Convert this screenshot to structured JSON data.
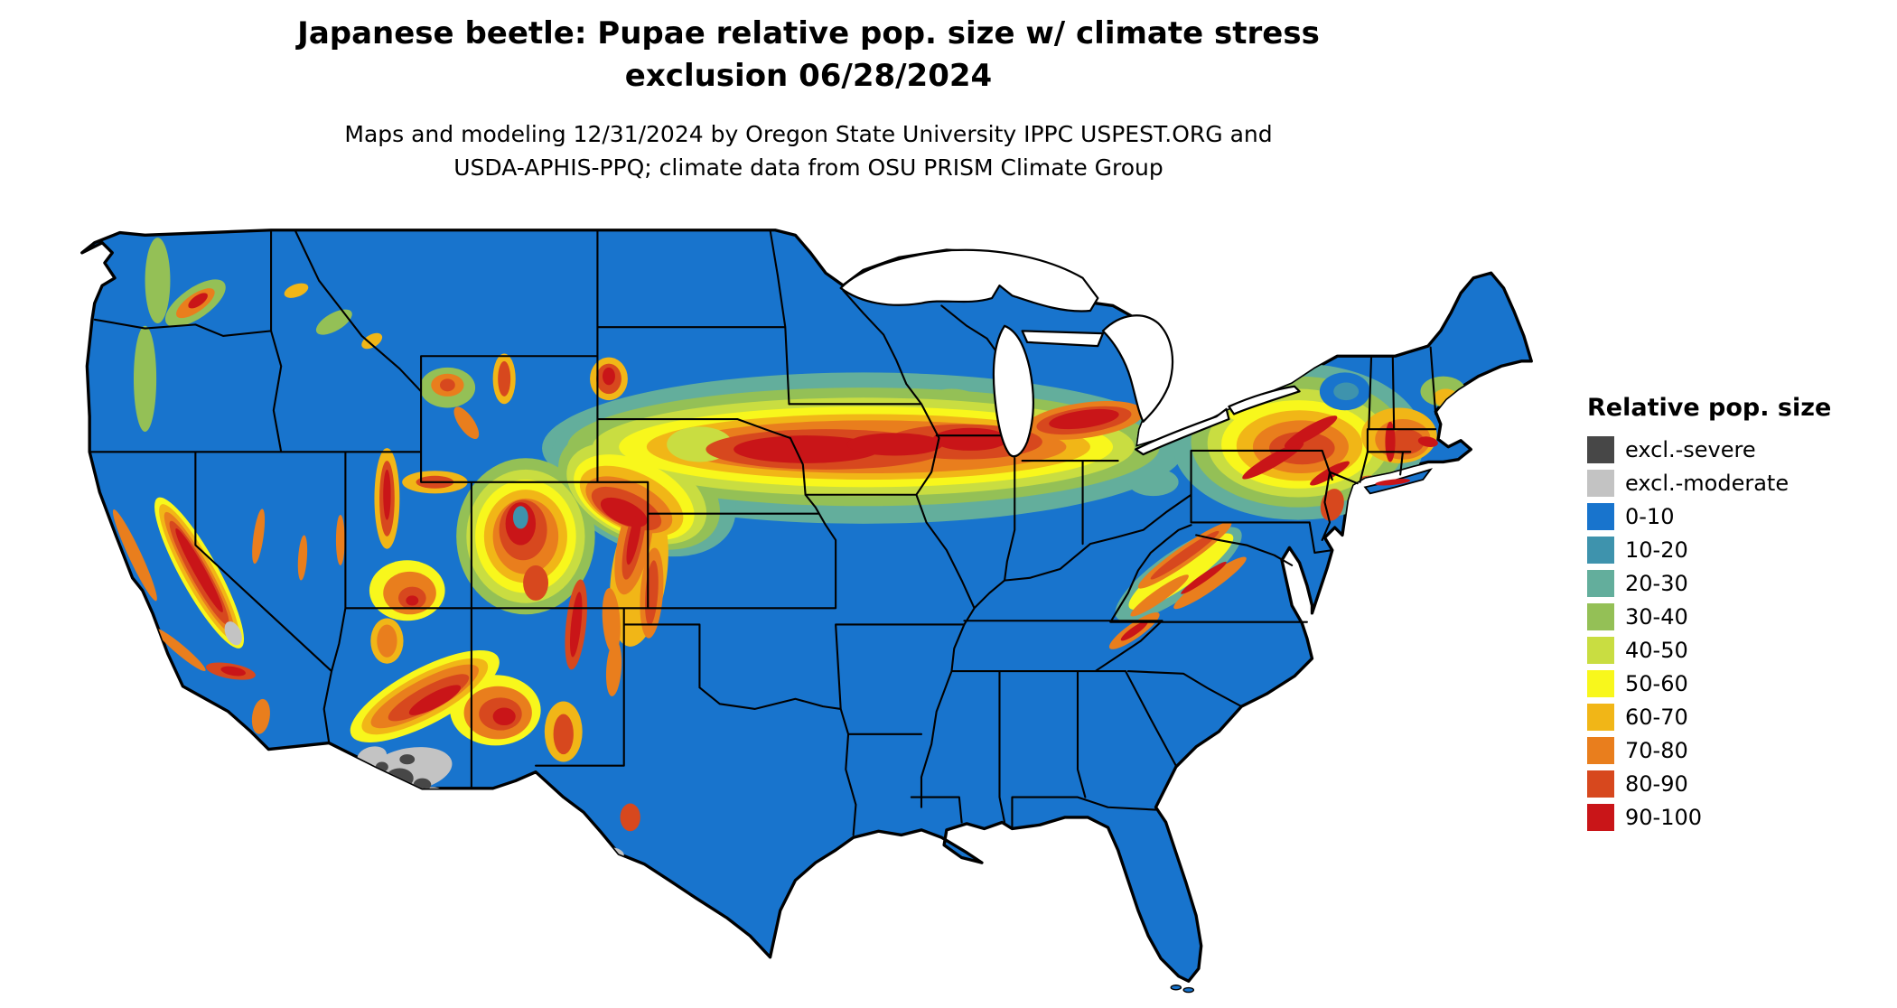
{
  "title": {
    "line1": "Japanese beetle: Pupae relative pop. size w/ climate stress",
    "line2": "exclusion 06/28/2024"
  },
  "subtitle": {
    "line1": "Maps and modeling 12/31/2024 by Oregon State University IPPC USPEST.ORG and",
    "line2": "USDA-APHIS-PPQ; climate data from OSU PRISM Climate Group"
  },
  "legend": {
    "title": "Relative pop. size",
    "items": [
      {
        "label": "excl.-severe",
        "color": "#474747"
      },
      {
        "label": "excl.-moderate",
        "color": "#c3c3c3"
      },
      {
        "label": "0-10",
        "color": "#1874cd"
      },
      {
        "label": "10-20",
        "color": "#3e93ad"
      },
      {
        "label": "20-30",
        "color": "#63ae9c"
      },
      {
        "label": "30-40",
        "color": "#94c056"
      },
      {
        "label": "40-50",
        "color": "#c9dd41"
      },
      {
        "label": "50-60",
        "color": "#f8f71c"
      },
      {
        "label": "60-70",
        "color": "#f1b617"
      },
      {
        "label": "70-80",
        "color": "#e97e1d"
      },
      {
        "label": "80-90",
        "color": "#d7481e"
      },
      {
        "label": "90-100",
        "color": "#c91518"
      }
    ]
  }
}
